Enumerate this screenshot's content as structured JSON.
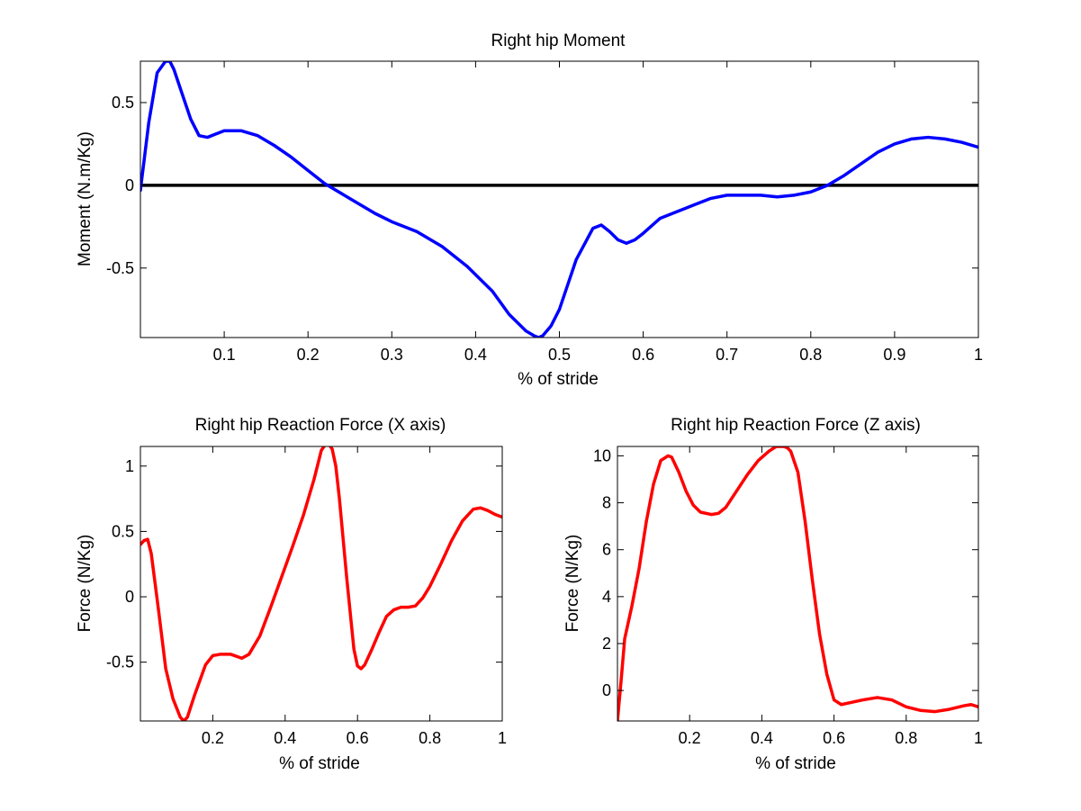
{
  "chart_data": [
    {
      "type": "line",
      "title": "Right hip Moment",
      "xlabel": "% of stride",
      "ylabel": "Moment (N.m/Kg)",
      "xlim": [
        0.0,
        1.0
      ],
      "ylim": [
        -0.92,
        0.75
      ],
      "xticks": [
        0.1,
        0.2,
        0.3,
        0.4,
        0.5,
        0.6,
        0.7,
        0.8,
        0.9,
        1.0
      ],
      "xtick_labels": [
        "0.1",
        "0.2",
        "0.3",
        "0.4",
        "0.5",
        "0.6",
        "0.7",
        "0.8",
        "0.9",
        "1"
      ],
      "yticks": [
        -0.5,
        0.0,
        0.5
      ],
      "ytick_labels": [
        "-0.5",
        "0",
        "0.5"
      ],
      "grid": false,
      "hlines": [
        {
          "y": 0,
          "color": "#000000"
        }
      ],
      "series": [
        {
          "color": "#0000ff",
          "x": [
            0.0,
            0.01,
            0.02,
            0.03,
            0.035,
            0.04,
            0.05,
            0.06,
            0.07,
            0.08,
            0.09,
            0.1,
            0.12,
            0.14,
            0.16,
            0.18,
            0.2,
            0.22,
            0.25,
            0.28,
            0.3,
            0.33,
            0.36,
            0.39,
            0.42,
            0.44,
            0.46,
            0.47,
            0.475,
            0.48,
            0.49,
            0.5,
            0.52,
            0.54,
            0.55,
            0.56,
            0.57,
            0.58,
            0.59,
            0.6,
            0.62,
            0.64,
            0.66,
            0.68,
            0.7,
            0.72,
            0.74,
            0.76,
            0.78,
            0.8,
            0.82,
            0.84,
            0.86,
            0.88,
            0.9,
            0.92,
            0.94,
            0.96,
            0.98,
            1.0
          ],
          "values": [
            -0.03,
            0.38,
            0.68,
            0.75,
            0.75,
            0.7,
            0.55,
            0.4,
            0.3,
            0.29,
            0.31,
            0.33,
            0.33,
            0.3,
            0.24,
            0.17,
            0.09,
            0.01,
            -0.08,
            -0.17,
            -0.22,
            -0.28,
            -0.37,
            -0.49,
            -0.64,
            -0.78,
            -0.88,
            -0.91,
            -0.92,
            -0.91,
            -0.85,
            -0.75,
            -0.45,
            -0.26,
            -0.24,
            -0.28,
            -0.33,
            -0.35,
            -0.33,
            -0.29,
            -0.2,
            -0.16,
            -0.12,
            -0.08,
            -0.06,
            -0.06,
            -0.06,
            -0.07,
            -0.06,
            -0.04,
            0.0,
            0.06,
            0.13,
            0.2,
            0.25,
            0.28,
            0.29,
            0.28,
            0.26,
            0.23
          ]
        }
      ]
    },
    {
      "type": "line",
      "title": "Right hip Reaction Force (X axis)",
      "xlabel": "% of stride",
      "ylabel": "Force (N/Kg)",
      "xlim": [
        0.0,
        1.0
      ],
      "ylim": [
        -0.95,
        1.15
      ],
      "xticks": [
        0.2,
        0.4,
        0.6,
        0.8,
        1.0
      ],
      "xtick_labels": [
        "0.2",
        "0.4",
        "0.6",
        "0.8",
        "1"
      ],
      "yticks": [
        -0.5,
        0.0,
        0.5,
        1.0
      ],
      "ytick_labels": [
        "-0.5",
        "0",
        "0.5",
        "1"
      ],
      "grid": false,
      "series": [
        {
          "color": "#ff0000",
          "x": [
            0.0,
            0.01,
            0.02,
            0.03,
            0.05,
            0.07,
            0.09,
            0.11,
            0.12,
            0.13,
            0.15,
            0.18,
            0.2,
            0.22,
            0.25,
            0.28,
            0.3,
            0.33,
            0.36,
            0.39,
            0.42,
            0.45,
            0.48,
            0.5,
            0.51,
            0.52,
            0.53,
            0.54,
            0.55,
            0.57,
            0.59,
            0.6,
            0.61,
            0.62,
            0.64,
            0.66,
            0.68,
            0.7,
            0.72,
            0.74,
            0.76,
            0.78,
            0.8,
            0.83,
            0.86,
            0.89,
            0.92,
            0.94,
            0.96,
            0.98,
            1.0
          ],
          "values": [
            0.4,
            0.43,
            0.44,
            0.33,
            -0.1,
            -0.55,
            -0.78,
            -0.92,
            -0.95,
            -0.92,
            -0.75,
            -0.52,
            -0.45,
            -0.44,
            -0.44,
            -0.47,
            -0.44,
            -0.3,
            -0.08,
            0.15,
            0.38,
            0.62,
            0.9,
            1.12,
            1.16,
            1.17,
            1.13,
            1.0,
            0.75,
            0.15,
            -0.4,
            -0.53,
            -0.55,
            -0.52,
            -0.4,
            -0.27,
            -0.15,
            -0.1,
            -0.08,
            -0.08,
            -0.07,
            -0.01,
            0.08,
            0.25,
            0.43,
            0.58,
            0.67,
            0.68,
            0.66,
            0.63,
            0.61
          ]
        }
      ]
    },
    {
      "type": "line",
      "title": "Right hip Reaction Force (Z axis)",
      "xlabel": "% of stride",
      "ylabel": "Force (N/Kg)",
      "xlim": [
        0.0,
        1.0
      ],
      "ylim": [
        -1.3,
        10.4
      ],
      "xticks": [
        0.2,
        0.4,
        0.6,
        0.8,
        1.0
      ],
      "xtick_labels": [
        "0.2",
        "0.4",
        "0.6",
        "0.8",
        "1"
      ],
      "yticks": [
        0,
        2,
        4,
        6,
        8,
        10
      ],
      "ytick_labels": [
        "0",
        "2",
        "4",
        "6",
        "8",
        "10"
      ],
      "grid": false,
      "series": [
        {
          "color": "#ff0000",
          "x": [
            0.0,
            0.01,
            0.02,
            0.04,
            0.06,
            0.08,
            0.1,
            0.12,
            0.14,
            0.15,
            0.17,
            0.19,
            0.21,
            0.23,
            0.26,
            0.28,
            0.3,
            0.33,
            0.36,
            0.39,
            0.42,
            0.44,
            0.46,
            0.47,
            0.48,
            0.5,
            0.52,
            0.54,
            0.56,
            0.58,
            0.6,
            0.62,
            0.65,
            0.68,
            0.72,
            0.76,
            0.8,
            0.84,
            0.88,
            0.92,
            0.96,
            0.98,
            1.0
          ],
          "values": [
            -1.3,
            0.4,
            2.2,
            3.6,
            5.2,
            7.2,
            8.8,
            9.8,
            10.0,
            9.95,
            9.3,
            8.5,
            7.9,
            7.6,
            7.5,
            7.55,
            7.8,
            8.5,
            9.2,
            9.8,
            10.2,
            10.4,
            10.4,
            10.35,
            10.2,
            9.3,
            7.2,
            4.7,
            2.4,
            0.7,
            -0.4,
            -0.6,
            -0.5,
            -0.4,
            -0.3,
            -0.4,
            -0.7,
            -0.85,
            -0.9,
            -0.8,
            -0.65,
            -0.6,
            -0.7
          ]
        }
      ]
    }
  ]
}
